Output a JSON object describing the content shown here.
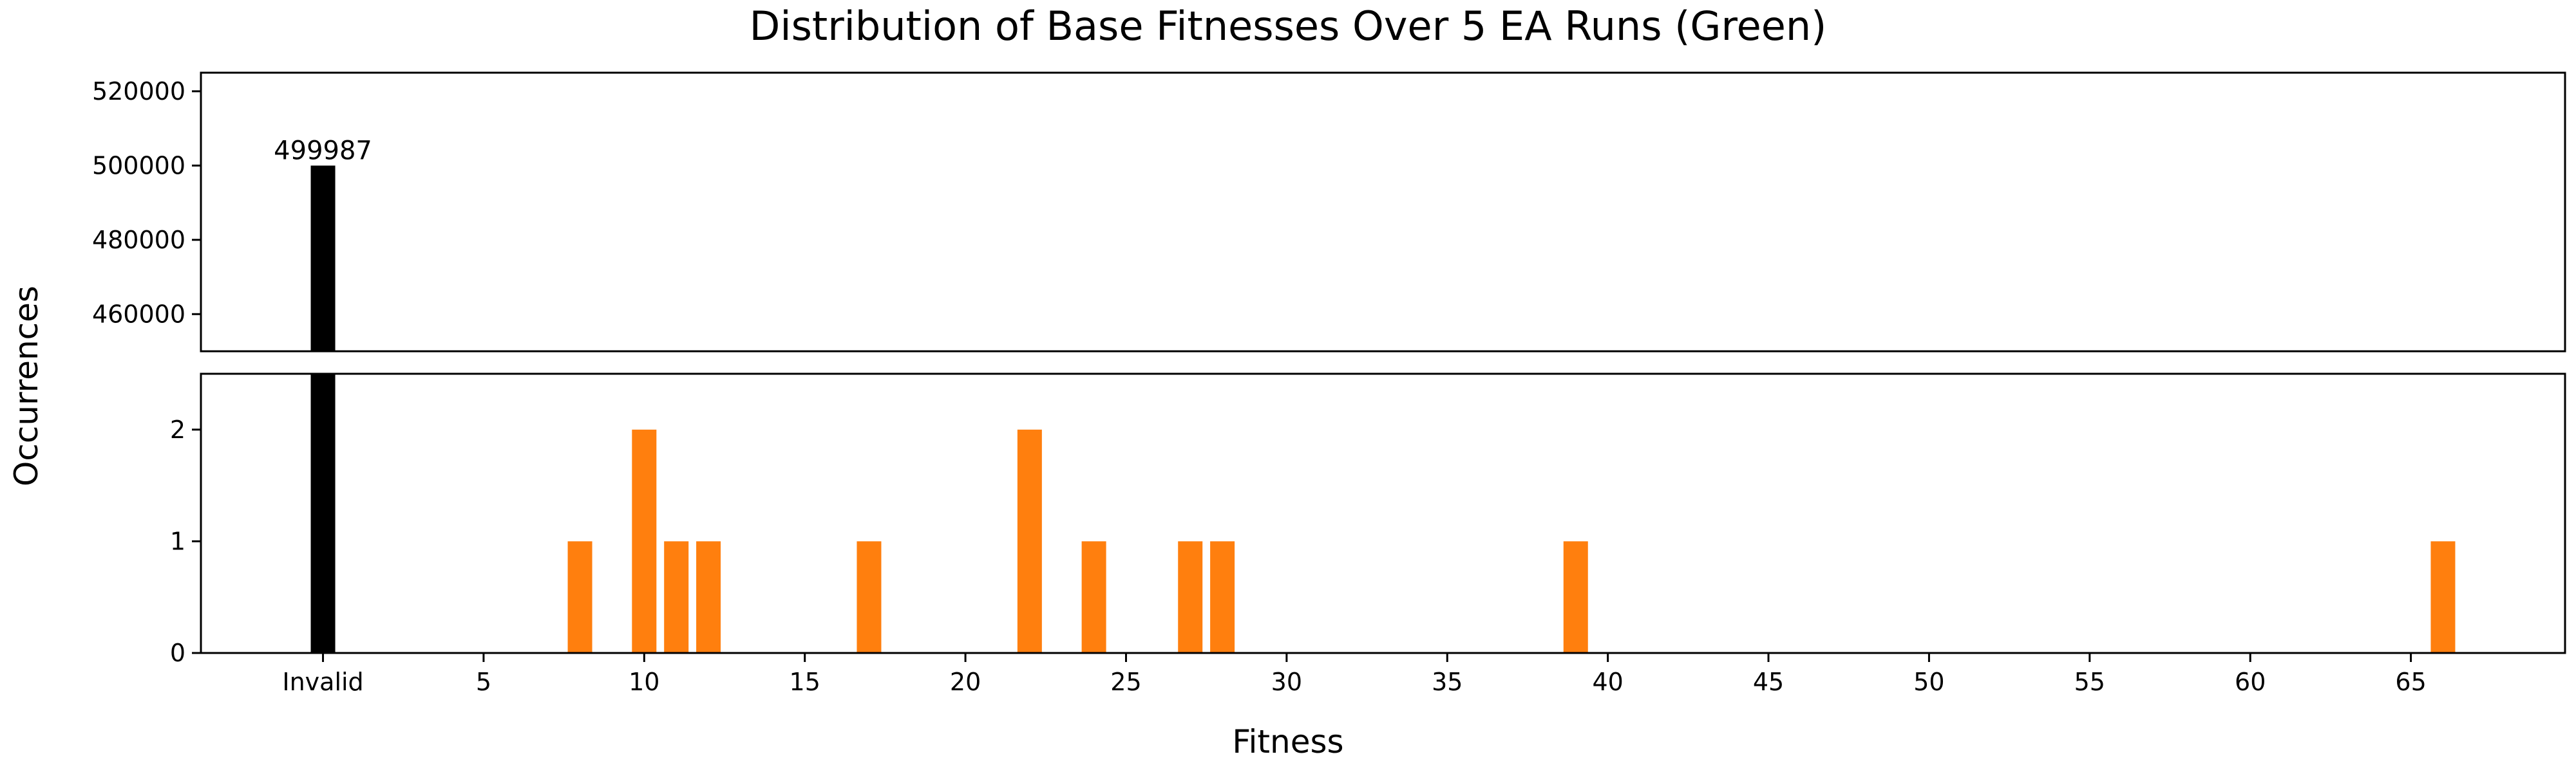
{
  "chart_data": {
    "type": "bar",
    "title": "Distribution of Base Fitnesses Over 5 EA Runs (Green)",
    "xlabel": "Fitness",
    "ylabel": "Occurrences",
    "x_tick_labels": [
      "Invalid",
      "5",
      "10",
      "15",
      "20",
      "25",
      "30",
      "35",
      "40",
      "45",
      "50",
      "55",
      "60",
      "65"
    ],
    "x_tick_values": [
      0,
      5,
      10,
      15,
      20,
      25,
      30,
      35,
      40,
      45,
      50,
      55,
      60,
      65
    ],
    "xlim": [
      -3.8,
      69.8
    ],
    "broken_y_axis": true,
    "upper_panel": {
      "ylim": [
        450000,
        525000
      ],
      "y_ticks": [
        460000,
        480000,
        500000,
        520000
      ]
    },
    "lower_panel": {
      "ylim": [
        0,
        2.5
      ],
      "y_ticks": [
        0,
        1,
        2
      ]
    },
    "series": [
      {
        "color": "#000000",
        "points": [
          {
            "x": 0,
            "label": "Invalid",
            "value": 499987,
            "data_label": "499987"
          }
        ]
      },
      {
        "color": "#ff7f0e",
        "points": [
          {
            "x": 8,
            "value": 1
          },
          {
            "x": 10,
            "value": 2
          },
          {
            "x": 11,
            "value": 1
          },
          {
            "x": 12,
            "value": 1
          },
          {
            "x": 17,
            "value": 1
          },
          {
            "x": 22,
            "value": 2
          },
          {
            "x": 24,
            "value": 1
          },
          {
            "x": 27,
            "value": 1
          },
          {
            "x": 28,
            "value": 1
          },
          {
            "x": 39,
            "value": 1
          },
          {
            "x": 66,
            "value": 1
          }
        ]
      }
    ],
    "grid": false,
    "legend": "none"
  }
}
